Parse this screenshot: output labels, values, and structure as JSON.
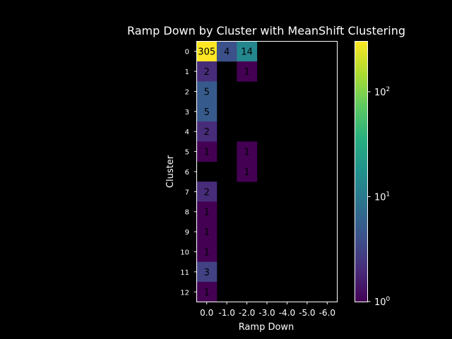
{
  "chart_data": {
    "type": "heatmap",
    "title": "Ramp Down by Cluster with MeanShift Clustering",
    "xlabel": "Ramp Down",
    "ylabel": "Cluster",
    "x_tick_labels": [
      "0.0",
      "-1.0",
      "-2.0",
      "-3.0",
      "-4.0",
      "-5.0",
      "-6.0"
    ],
    "y_tick_labels": [
      "0",
      "1",
      "2",
      "3",
      "4",
      "5",
      "6",
      "7",
      "8",
      "9",
      "10",
      "11",
      "12"
    ],
    "values": [
      [
        305,
        4,
        14,
        null,
        null,
        null,
        null
      ],
      [
        2,
        null,
        1,
        null,
        null,
        null,
        null
      ],
      [
        5,
        null,
        null,
        null,
        null,
        null,
        null
      ],
      [
        5,
        null,
        null,
        null,
        null,
        null,
        null
      ],
      [
        2,
        null,
        null,
        null,
        null,
        null,
        null
      ],
      [
        1,
        null,
        1,
        null,
        null,
        null,
        null
      ],
      [
        null,
        null,
        1,
        null,
        null,
        null,
        null
      ],
      [
        2,
        null,
        null,
        null,
        null,
        null,
        null
      ],
      [
        1,
        null,
        null,
        null,
        null,
        null,
        null
      ],
      [
        1,
        null,
        null,
        null,
        null,
        null,
        null
      ],
      [
        1,
        null,
        null,
        null,
        null,
        null,
        null
      ],
      [
        3,
        null,
        null,
        null,
        null,
        null,
        null
      ],
      [
        1,
        null,
        null,
        null,
        null,
        null,
        null
      ]
    ],
    "colorbar": {
      "scale": "log",
      "range": [
        1,
        305
      ],
      "colormap": "viridis",
      "tick_values": [
        1,
        10,
        100
      ],
      "tick_labels": [
        {
          "base": "10",
          "exp": "0"
        },
        {
          "base": "10",
          "exp": "1"
        },
        {
          "base": "10",
          "exp": "2"
        }
      ]
    },
    "background": "#000000",
    "foreground": "#ffffff"
  }
}
